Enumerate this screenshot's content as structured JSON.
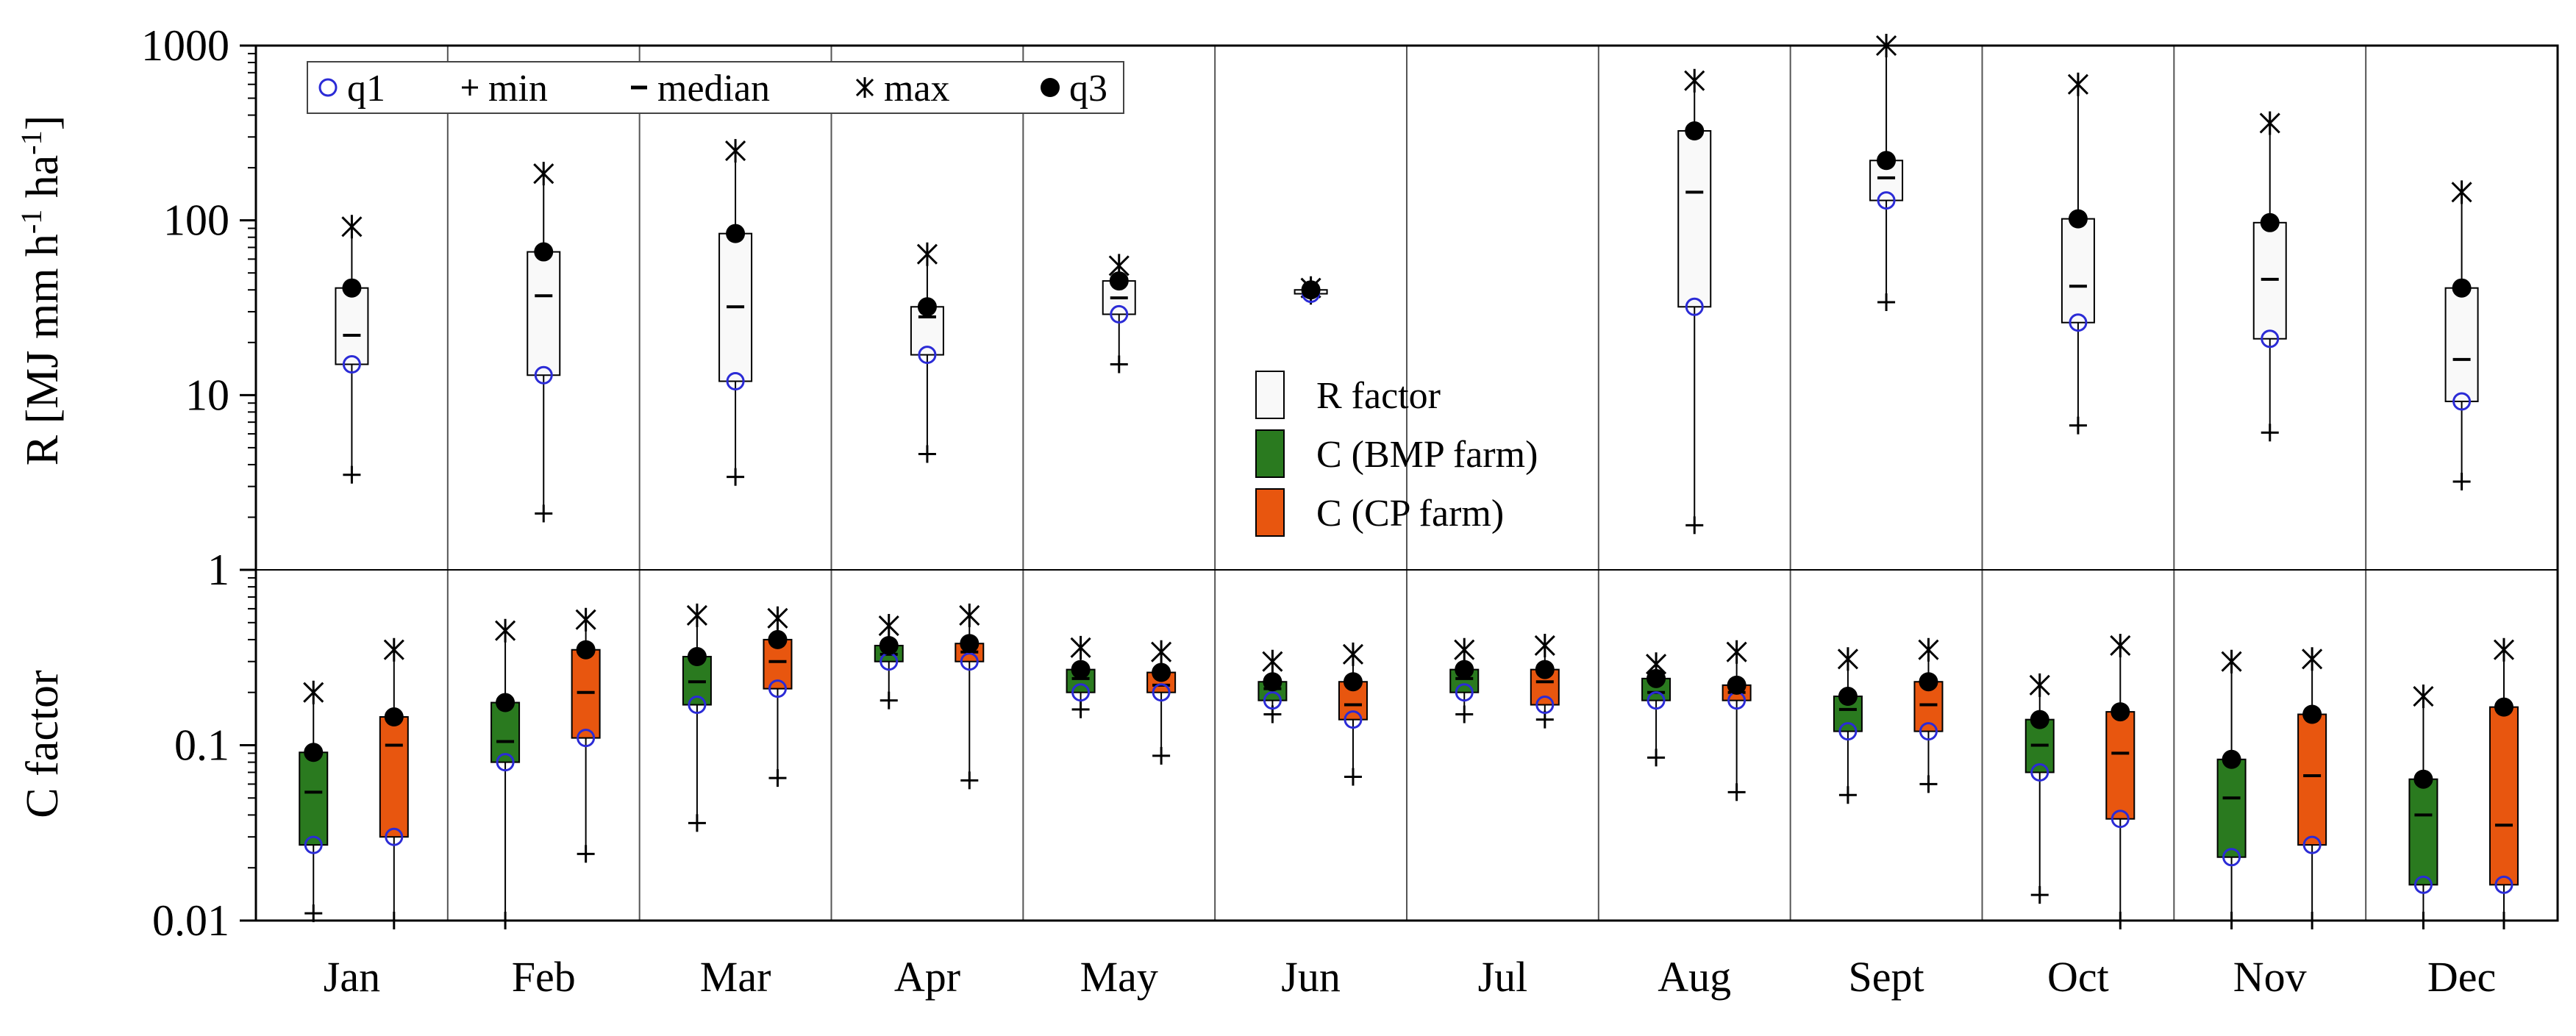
{
  "chart_data": [
    {
      "type": "boxplot",
      "panel": "R factor",
      "ylabel": "R [MJ mm h-1 ha-1]",
      "yscale": "log",
      "ylim": [
        1,
        1000
      ],
      "yticks": [
        "1",
        "10",
        "100",
        "1000"
      ],
      "categories": [
        "Jan",
        "Feb",
        "Mar",
        "Apr",
        "May",
        "Jun",
        "Jul",
        "Aug",
        "Sept",
        "Oct",
        "Nov",
        "Dec"
      ],
      "series": [
        {
          "name": "R factor",
          "color": "#f9f9f9",
          "boxes": [
            {
              "min": 3.5,
              "q1": 15,
              "median": 22,
              "q3": 41,
              "max": 92
            },
            {
              "min": 2.1,
              "q1": 13,
              "median": 37,
              "q3": 66,
              "max": 185
            },
            {
              "min": 3.4,
              "q1": 12,
              "median": 32,
              "q3": 84,
              "max": 250
            },
            {
              "min": 4.6,
              "q1": 17,
              "median": 28,
              "q3": 32,
              "max": 64
            },
            {
              "min": 15,
              "q1": 29,
              "median": 36,
              "q3": 45,
              "max": 55
            },
            {
              "min": 37,
              "q1": 38,
              "median": 39,
              "q3": 40,
              "max": 41
            },
            null,
            {
              "min": 1.8,
              "q1": 32,
              "median": 145,
              "q3": 325,
              "max": 630
            },
            {
              "min": 34,
              "q1": 130,
              "median": 175,
              "q3": 220,
              "max": 1000
            },
            {
              "min": 6.7,
              "q1": 26,
              "median": 42,
              "q3": 102,
              "max": 600
            },
            {
              "min": 6.1,
              "q1": 21,
              "median": 46,
              "q3": 97,
              "max": 360
            },
            {
              "min": 3.2,
              "q1": 9.2,
              "median": 16,
              "q3": 41,
              "max": 145
            }
          ]
        }
      ],
      "legend": [
        {
          "symbol": "○",
          "label": "q1"
        },
        {
          "symbol": "+",
          "label": "min"
        },
        {
          "symbol": "−",
          "label": "median"
        },
        {
          "symbol": "×",
          "label": "max"
        },
        {
          "symbol": "●",
          "label": "q3"
        }
      ]
    },
    {
      "type": "boxplot",
      "panel": "C factor",
      "ylabel": "C factor",
      "yscale": "log",
      "ylim": [
        0.01,
        1
      ],
      "yticks": [
        "0.01",
        "0.1"
      ],
      "categories": [
        "Jan",
        "Feb",
        "Mar",
        "Apr",
        "May",
        "Jun",
        "Jul",
        "Aug",
        "Sept",
        "Oct",
        "Nov",
        "Dec"
      ],
      "series": [
        {
          "name": "C (BMP farm)",
          "color": "#2a7a1f",
          "boxes": [
            {
              "min": 0.011,
              "q1": 0.027,
              "median": 0.054,
              "q3": 0.091,
              "max": 0.2
            },
            {
              "min": 0.01,
              "q1": 0.08,
              "median": 0.105,
              "q3": 0.175,
              "max": 0.45
            },
            {
              "min": 0.036,
              "q1": 0.17,
              "median": 0.23,
              "q3": 0.32,
              "max": 0.55
            },
            {
              "min": 0.18,
              "q1": 0.3,
              "median": 0.33,
              "q3": 0.37,
              "max": 0.48
            },
            {
              "min": 0.16,
              "q1": 0.2,
              "median": 0.24,
              "q3": 0.27,
              "max": 0.36
            },
            {
              "min": 0.15,
              "q1": 0.18,
              "median": 0.21,
              "q3": 0.23,
              "max": 0.3
            },
            {
              "min": 0.15,
              "q1": 0.2,
              "median": 0.24,
              "q3": 0.27,
              "max": 0.35
            },
            {
              "min": 0.085,
              "q1": 0.18,
              "median": 0.2,
              "q3": 0.24,
              "max": 0.29
            },
            {
              "min": 0.052,
              "q1": 0.12,
              "median": 0.16,
              "q3": 0.19,
              "max": 0.31
            },
            {
              "min": 0.014,
              "q1": 0.07,
              "median": 0.1,
              "q3": 0.14,
              "max": 0.22
            },
            {
              "min": 0.01,
              "q1": 0.023,
              "median": 0.05,
              "q3": 0.083,
              "max": 0.3
            },
            {
              "min": 0.01,
              "q1": 0.016,
              "median": 0.04,
              "q3": 0.064,
              "max": 0.19
            }
          ]
        },
        {
          "name": "C (CP farm)",
          "color": "#e8560f",
          "boxes": [
            {
              "min": 0.01,
              "q1": 0.03,
              "median": 0.1,
              "q3": 0.145,
              "max": 0.35
            },
            {
              "min": 0.024,
              "q1": 0.11,
              "median": 0.2,
              "q3": 0.35,
              "max": 0.52
            },
            {
              "min": 0.065,
              "q1": 0.21,
              "median": 0.3,
              "q3": 0.4,
              "max": 0.53
            },
            {
              "min": 0.063,
              "q1": 0.3,
              "median": 0.34,
              "q3": 0.38,
              "max": 0.55
            },
            {
              "min": 0.087,
              "q1": 0.2,
              "median": 0.22,
              "q3": 0.26,
              "max": 0.34
            },
            {
              "min": 0.066,
              "q1": 0.14,
              "median": 0.17,
              "q3": 0.23,
              "max": 0.33
            },
            {
              "min": 0.14,
              "q1": 0.17,
              "median": 0.23,
              "q3": 0.27,
              "max": 0.37
            },
            {
              "min": 0.054,
              "q1": 0.18,
              "median": 0.2,
              "q3": 0.22,
              "max": 0.34
            },
            {
              "min": 0.06,
              "q1": 0.12,
              "median": 0.17,
              "q3": 0.23,
              "max": 0.35
            },
            {
              "min": 0.01,
              "q1": 0.038,
              "median": 0.09,
              "q3": 0.155,
              "max": 0.37
            },
            {
              "min": 0.01,
              "q1": 0.027,
              "median": 0.067,
              "q3": 0.15,
              "max": 0.31
            },
            {
              "min": 0.01,
              "q1": 0.016,
              "median": 0.035,
              "q3": 0.165,
              "max": 0.35
            }
          ]
        }
      ]
    }
  ],
  "ylabel_parts": {
    "base": "R [MJ mm h",
    "exp1": "-1",
    "mid": " ha",
    "exp2": "-1",
    "close": "]"
  }
}
